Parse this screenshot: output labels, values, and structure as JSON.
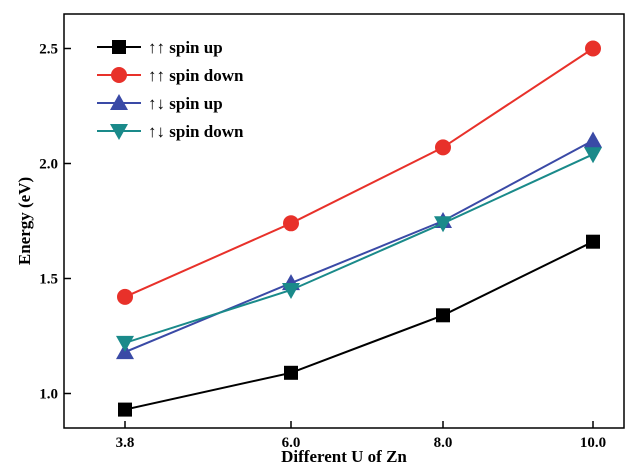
{
  "chart_data": {
    "type": "line",
    "title": "",
    "xlabel": "Different U of Zn",
    "ylabel": "Energy (eV)",
    "categories": [
      "3.8",
      "6.0",
      "8.0",
      "10.0"
    ],
    "ylim": [
      0.85,
      2.65
    ],
    "yticks": [
      "1.0",
      "1.5",
      "2.0",
      "2.5"
    ],
    "ytick_values": [
      1.0,
      1.5,
      2.0,
      2.5
    ],
    "grid": false,
    "legend_position": "top-left",
    "series": [
      {
        "name": "↑↑ spin up",
        "color": "#000000",
        "marker": "square",
        "values": [
          0.93,
          1.09,
          1.34,
          1.66
        ]
      },
      {
        "name": "↑↑ spin down",
        "color": "#e8312a",
        "marker": "circle",
        "values": [
          1.42,
          1.74,
          2.07,
          2.5
        ]
      },
      {
        "name": "↑↓ spin up",
        "color": "#3a4aa6",
        "marker": "triangle-up",
        "values": [
          1.18,
          1.48,
          1.75,
          2.1
        ]
      },
      {
        "name": "↑↓ spin down",
        "color": "#1a8a8a",
        "marker": "triangle-down",
        "values": [
          1.22,
          1.45,
          1.74,
          2.04
        ]
      }
    ]
  }
}
